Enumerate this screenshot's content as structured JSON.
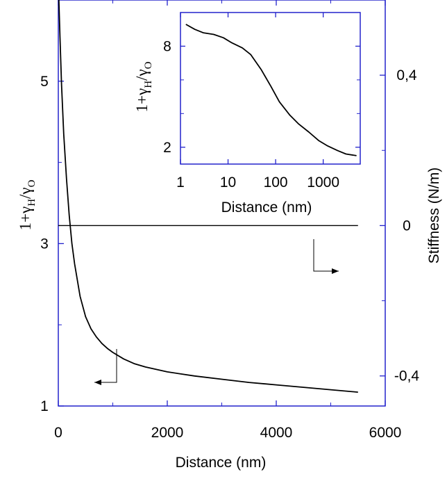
{
  "chart_data": [
    {
      "type": "line",
      "name": "main",
      "xlabel": "Distance (nm)",
      "ylabel_left": {
        "base": "1+γ",
        "sub1": "H",
        "sep": "/γ",
        "sub2": "O"
      },
      "ylabel_right": "Stiffness (N/m)",
      "x_range": [
        0,
        6000
      ],
      "x_ticks": [
        0,
        2000,
        4000,
        6000
      ],
      "x_tick_labels": [
        "0",
        "2000",
        "4000",
        "6000"
      ],
      "y_left_range": [
        1,
        6
      ],
      "y_left_ticks": [
        1,
        3,
        5
      ],
      "y_left_tick_labels": [
        "1",
        "3",
        "5"
      ],
      "y_right_range": [
        -0.48,
        0.6
      ],
      "y_right_ticks": [
        -0.4,
        0,
        0.4
      ],
      "y_right_tick_labels": [
        "-0,4",
        "0",
        "0,4"
      ],
      "series": [
        {
          "axis": "left",
          "x": [
            10,
            30,
            60,
            100,
            150,
            200,
            250,
            300,
            400,
            500,
            600,
            700,
            800,
            900,
            1000,
            1200,
            1400,
            1600,
            1800,
            2000,
            2500,
            3000,
            3500,
            4000,
            4500,
            5000,
            5500
          ],
          "y": [
            6.0,
            5.55,
            4.95,
            4.35,
            3.8,
            3.35,
            3.0,
            2.75,
            2.35,
            2.1,
            1.95,
            1.85,
            1.77,
            1.71,
            1.66,
            1.58,
            1.52,
            1.48,
            1.45,
            1.42,
            1.37,
            1.33,
            1.29,
            1.26,
            1.23,
            1.2,
            1.17
          ]
        },
        {
          "axis": "right",
          "x": [
            0,
            1000,
            2000,
            3000,
            4000,
            5000,
            5500
          ],
          "y": [
            0.0,
            0.0,
            0.0,
            0.0,
            0.0,
            0.0,
            0.0
          ]
        }
      ]
    },
    {
      "type": "line",
      "name": "inset",
      "xscale": "log",
      "xlabel": "Distance (nm)",
      "ylabel": {
        "base": "1+γ",
        "sub1": "H",
        "sep": "/γ",
        "sub2": "O"
      },
      "x_range": [
        1,
        6000
      ],
      "x_ticks": [
        1,
        10,
        100,
        1000
      ],
      "x_tick_labels": [
        "1",
        "10",
        "100",
        "1000"
      ],
      "y_range": [
        1,
        10
      ],
      "y_ticks": [
        2,
        8
      ],
      "y_tick_labels": [
        "2",
        "8"
      ],
      "series": [
        {
          "x": [
            1.3,
            2,
            3,
            5,
            8,
            12,
            20,
            30,
            50,
            80,
            120,
            200,
            300,
            500,
            800,
            1200,
            2000,
            3000,
            5000
          ],
          "y": [
            9.3,
            9.0,
            8.8,
            8.7,
            8.5,
            8.2,
            7.9,
            7.5,
            6.6,
            5.6,
            4.7,
            3.9,
            3.4,
            2.9,
            2.4,
            2.1,
            1.8,
            1.6,
            1.5
          ]
        }
      ]
    }
  ]
}
